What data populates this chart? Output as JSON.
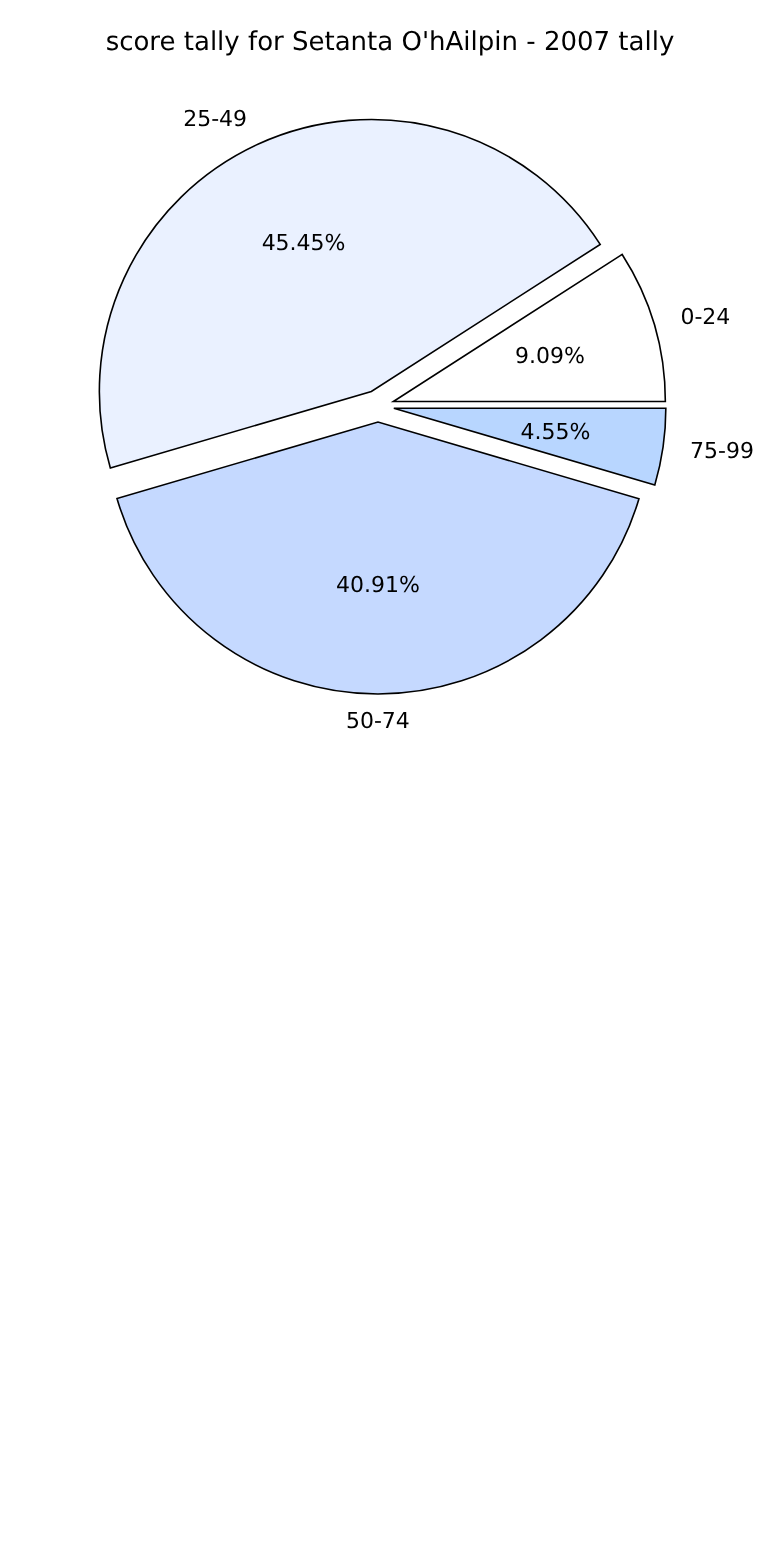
{
  "chart_data": {
    "type": "pie",
    "title": "score tally for Setanta O'hAilpin - 2007 tally",
    "categories": [
      "0-24",
      "25-49",
      "50-74",
      "75-99"
    ],
    "values": [
      9.09,
      45.45,
      40.91,
      4.55
    ],
    "colors": [
      "#ffffff",
      "#eaf1ff",
      "#c5d9ff",
      "#b8d6ff"
    ],
    "value_labels": [
      "9.09%",
      "45.45%",
      "40.91%",
      "4.55%"
    ],
    "legend": false
  }
}
